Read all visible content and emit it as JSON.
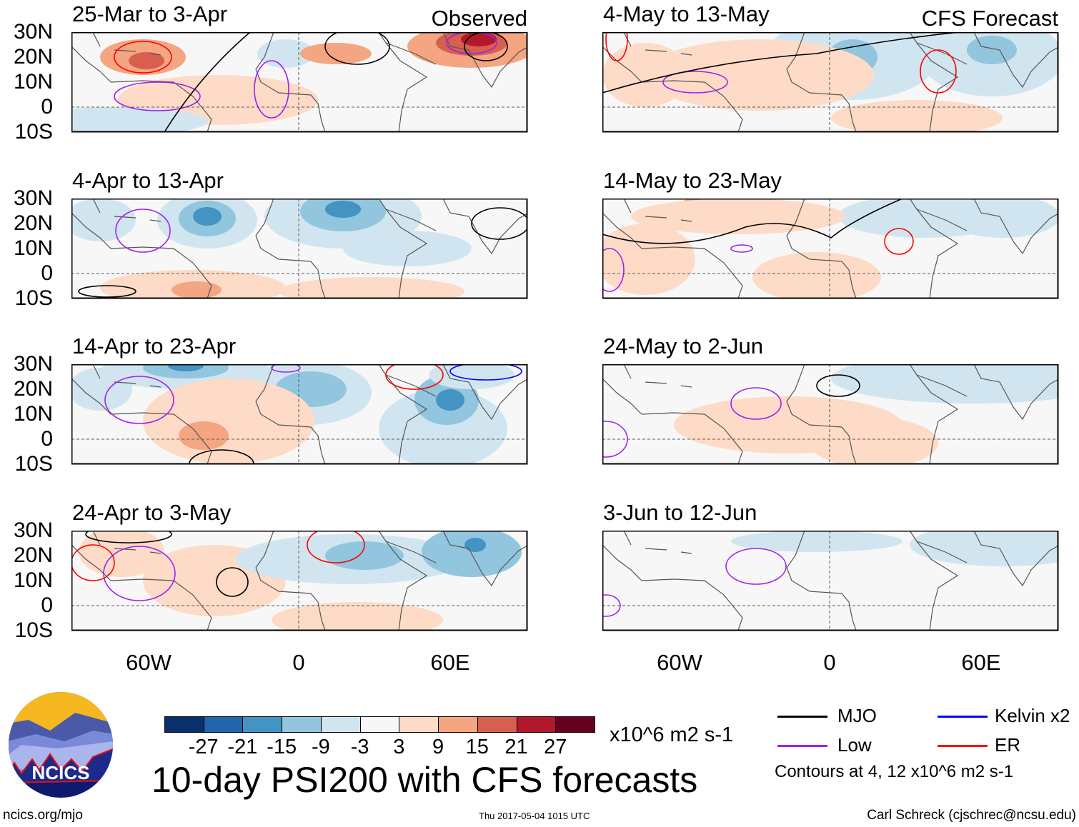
{
  "panels": [
    {
      "title": "25-Mar to 3-Apr",
      "label": "Observed"
    },
    {
      "title": "4-Apr to 13-Apr",
      "label": ""
    },
    {
      "title": "14-Apr to 23-Apr",
      "label": ""
    },
    {
      "title": "24-Apr to 3-May",
      "label": ""
    },
    {
      "title": "4-May to 13-May",
      "label": "CFS Forecast"
    },
    {
      "title": "14-May to 23-May",
      "label": ""
    },
    {
      "title": "24-May to 2-Jun",
      "label": ""
    },
    {
      "title": "3-Jun to 12-Jun",
      "label": ""
    }
  ],
  "lat_ticks": [
    "30N",
    "20N",
    "10N",
    "0",
    "10S"
  ],
  "lon_ticks": [
    "60W",
    "0",
    "60E"
  ],
  "colorbar": {
    "colors": [
      "#08306b",
      "#2166ac",
      "#4393c3",
      "#92c5de",
      "#d1e5f0",
      "#f7f7f7",
      "#fddbc7",
      "#f4a582",
      "#d6604d",
      "#b2182b",
      "#67001f"
    ],
    "labels": [
      "-27",
      "-21",
      "-15",
      "-9",
      "-3",
      "3",
      "9",
      "15",
      "21",
      "27"
    ],
    "units": "x10^6 m2 s-1"
  },
  "legend": {
    "items": [
      {
        "label": "MJO",
        "color": "#000000"
      },
      {
        "label": "Kelvin x2",
        "color": "#0000ff"
      },
      {
        "label": "Low",
        "color": "#a020f0"
      },
      {
        "label": "ER",
        "color": "#ff0000"
      }
    ],
    "contours_note": "Contours at 4, 12 x10^6 m2 s-1"
  },
  "title": "10-day PSI200 with CFS forecasts",
  "logo_text": "NCICS",
  "footer": {
    "url": "ncics.org/mjo",
    "timestamp": "Thu 2017-05-04 1015 UTC",
    "author": "Carl Schreck (cjschrec@ncsu.edu)"
  }
}
